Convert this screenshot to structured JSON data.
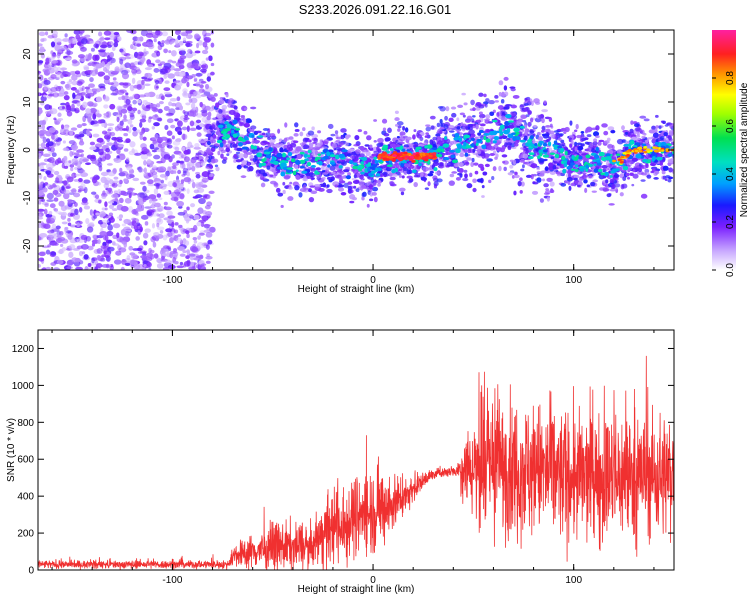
{
  "title": "S233.2026.091.22.16.G01",
  "colors": {
    "scatter": "#7a1fff",
    "snr_line": "#f03030",
    "axis": "#000000"
  },
  "chart_data": [
    {
      "type": "heatmap",
      "name": "spectrogram",
      "xlabel": "Height of straight line (km)",
      "ylabel": "Frequency (Hz)",
      "xlim": [
        -167,
        150
      ],
      "ylim": [
        -25,
        25
      ],
      "xticks": [
        -100,
        0,
        100
      ],
      "yticks": [
        20,
        10,
        0,
        -10,
        -20
      ],
      "colorbar": {
        "label": "Normalized spectral amplitude",
        "range": [
          0,
          1
        ],
        "ticks": [
          "0.0",
          "0.2",
          "0.4",
          "0.6",
          "0.8"
        ]
      },
      "ridge": [
        {
          "x": -80,
          "y": 3
        },
        {
          "x": -72,
          "y": 5
        },
        {
          "x": -60,
          "y": 0
        },
        {
          "x": -45,
          "y": -3
        },
        {
          "x": -25,
          "y": -2
        },
        {
          "x": -10,
          "y": -3
        },
        {
          "x": 0,
          "y": -4
        },
        {
          "x": 5,
          "y": -1
        },
        {
          "x": 20,
          "y": -1.5
        },
        {
          "x": 35,
          "y": 0
        },
        {
          "x": 55,
          "y": 2
        },
        {
          "x": 65,
          "y": 5
        },
        {
          "x": 80,
          "y": 1
        },
        {
          "x": 100,
          "y": -2
        },
        {
          "x": 120,
          "y": -3
        },
        {
          "x": 130,
          "y": 0
        },
        {
          "x": 150,
          "y": 0
        }
      ]
    },
    {
      "type": "line",
      "name": "snr",
      "xlabel": "Height of straight line (km)",
      "ylabel": "SNR (10 * v/v)",
      "xlim": [
        -167,
        150
      ],
      "ylim": [
        0,
        1300
      ],
      "xticks": [
        -100,
        0,
        100
      ],
      "yticks": [
        0,
        200,
        400,
        600,
        800,
        1000,
        1200
      ],
      "envelope": [
        {
          "x": -167,
          "base": 30,
          "noise": 20
        },
        {
          "x": -72,
          "base": 30,
          "noise": 20
        },
        {
          "x": -70,
          "base": 80,
          "noise": 60
        },
        {
          "x": -45,
          "base": 130,
          "noise": 120
        },
        {
          "x": -30,
          "base": 120,
          "noise": 100
        },
        {
          "x": -22,
          "base": 230,
          "noise": 180
        },
        {
          "x": -15,
          "base": 230,
          "noise": 200
        },
        {
          "x": -10,
          "base": 290,
          "noise": 190
        },
        {
          "x": 0,
          "base": 320,
          "noise": 210
        },
        {
          "x": 10,
          "base": 360,
          "noise": 150
        },
        {
          "x": 20,
          "base": 440,
          "noise": 60
        },
        {
          "x": 28,
          "base": 510,
          "noise": 30
        },
        {
          "x": 35,
          "base": 530,
          "noise": 25
        },
        {
          "x": 42,
          "base": 540,
          "noise": 30
        },
        {
          "x": 45,
          "base": 560,
          "noise": 180
        },
        {
          "x": 55,
          "base": 560,
          "noise": 300
        },
        {
          "x": 70,
          "base": 560,
          "noise": 340
        },
        {
          "x": 100,
          "base": 500,
          "noise": 320
        },
        {
          "x": 130,
          "base": 500,
          "noise": 310
        },
        {
          "x": 150,
          "base": 520,
          "noise": 300
        }
      ]
    }
  ]
}
